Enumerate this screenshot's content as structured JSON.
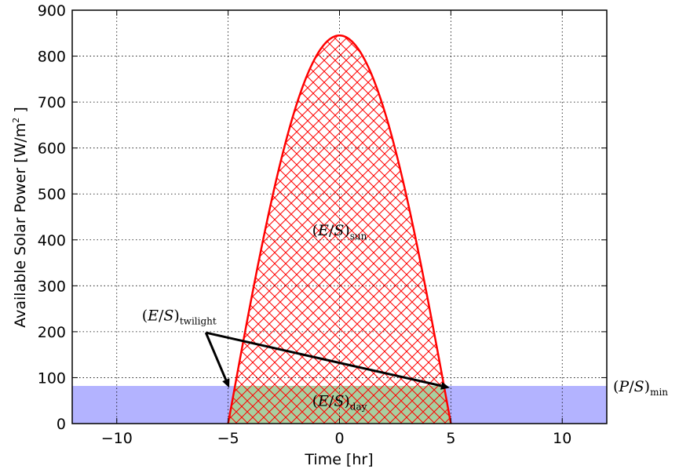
{
  "chart_data": {
    "type": "area",
    "xlabel": "Time [hr]",
    "ylabel_main": "Available Solar Power [W/m",
    "ylabel_sup": "2",
    "ylabel_end": " ]",
    "xlim": [
      -12,
      12
    ],
    "ylim": [
      0,
      900
    ],
    "xticks": [
      -10,
      -5,
      0,
      5,
      10
    ],
    "xtick_labels": [
      "−10",
      "−5",
      "0",
      "5",
      "10"
    ],
    "yticks": [
      0,
      100,
      200,
      300,
      400,
      500,
      600,
      700,
      800,
      900
    ],
    "ytick_labels": [
      "0",
      "100",
      "200",
      "300",
      "400",
      "500",
      "600",
      "700",
      "800",
      "900"
    ],
    "grid": true,
    "series": [
      {
        "kind": "curve",
        "color": "#ff0000",
        "shape": "cosine",
        "peak_time": 0,
        "peak_value": 845,
        "start_time": -5.0,
        "end_time": 5.0,
        "fill": "red-crosshatch"
      }
    ],
    "threshold": {
      "value": 82,
      "fill_color": "#b3b3ff",
      "day_fill_color": "#a8cfa0"
    },
    "annotations": {
      "sun": {
        "text": "(E/S)",
        "sub": "sun",
        "x": 0,
        "y": 410
      },
      "day": {
        "text": "(E/S)",
        "sub": "day",
        "x": 0,
        "y": 38
      },
      "twilight": {
        "text": "(E/S)",
        "sub": "twilight",
        "x": -7.2,
        "y": 225,
        "arrow_from": [
          -6.0,
          198
        ],
        "arrow_to_left": [
          -4.95,
          78
        ],
        "arrow_to_right": [
          4.95,
          78
        ]
      },
      "pmin": {
        "text": "(P/S)",
        "sub": "min",
        "y": 82
      }
    }
  }
}
